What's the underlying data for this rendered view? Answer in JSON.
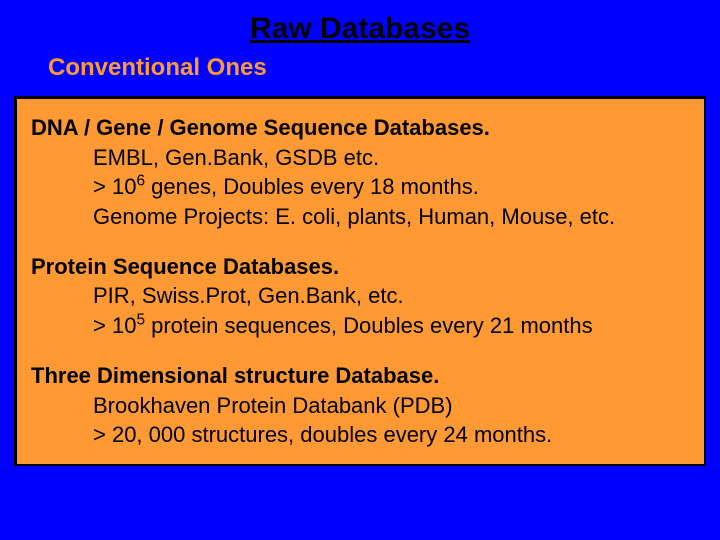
{
  "colors": {
    "background": "#0000ff",
    "panel": "#ff9933",
    "title_text": "#000000",
    "subtitle_text": "#ff9933",
    "body_text": "#000000"
  },
  "typography": {
    "title_fontsize": 30,
    "subtitle_fontsize": 24,
    "body_fontsize": 22,
    "font_family": "Arial"
  },
  "title": "Raw Databases",
  "subtitle": "Conventional Ones",
  "sections": [
    {
      "heading": "DNA / Gene / Genome Sequence Databases.",
      "lines": [
        {
          "text": "EMBL, Gen.Bank, GSDB etc."
        },
        {
          "prefix": "> 10",
          "sup": "6",
          "suffix": " genes, Doubles every 18 months."
        },
        {
          "text": "Genome Projects: E. coli, plants, Human, Mouse, etc."
        }
      ]
    },
    {
      "heading": "Protein Sequence Databases.",
      "lines": [
        {
          "text": "PIR, Swiss.Prot, Gen.Bank, etc."
        },
        {
          "prefix": "> 10",
          "sup": "5",
          "suffix": " protein sequences, Doubles every 21 months"
        }
      ]
    },
    {
      "heading": "Three Dimensional structure Database.",
      "lines": [
        {
          "text": "Brookhaven Protein Databank (PDB)"
        },
        {
          "text": "> 20, 000 structures, doubles every 24 months."
        }
      ]
    }
  ]
}
